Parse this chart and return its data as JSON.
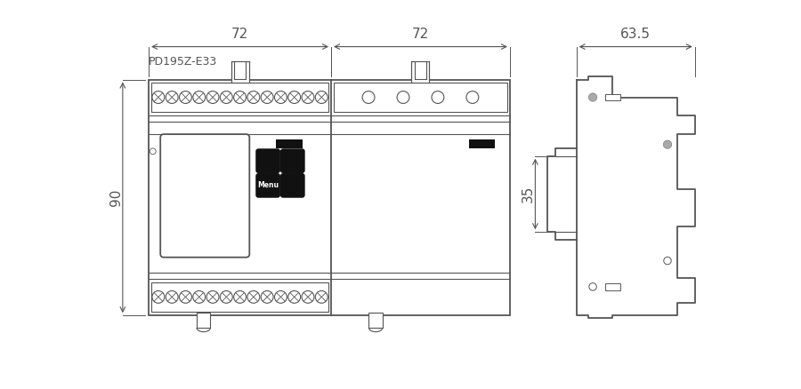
{
  "title": "PD195Z-E33",
  "bg_color": "#ffffff",
  "line_color": "#555555",
  "dark_color": "#111111",
  "dim_color": "#555555",
  "dim72_left_label": "72",
  "dim72_right_label": "72",
  "dim635_label": "63.5",
  "dim90_label": "90",
  "dim35_label": "35"
}
